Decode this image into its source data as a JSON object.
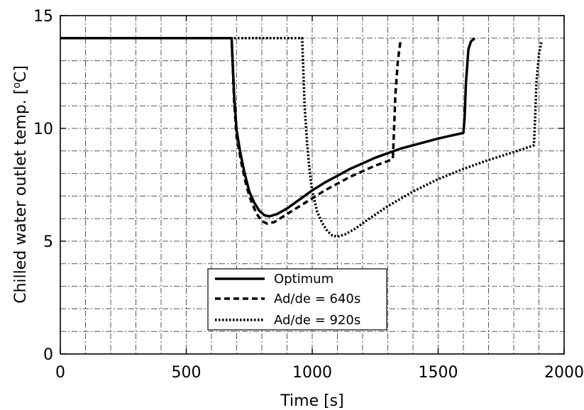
{
  "chart_data": {
    "type": "line",
    "xlabel": "Time [s]",
    "ylabel_main": "Chilled water outlet temp. [",
    "ylabel_sup": "o",
    "ylabel_tail": "C]",
    "xlim": [
      0,
      2000
    ],
    "ylim": [
      0,
      15
    ],
    "xticks": [
      0,
      500,
      1000,
      1500,
      2000
    ],
    "yticks": [
      0,
      5,
      10,
      15
    ],
    "x_minor_step": 100,
    "y_minor_step": 1,
    "grid": true,
    "legend_position": "bottom-center",
    "series": [
      {
        "name": "Optimum",
        "style": "solid",
        "color": "#000000",
        "points": [
          [
            0,
            14
          ],
          [
            680,
            14
          ],
          [
            690,
            11.5
          ],
          [
            700,
            9.9
          ],
          [
            715,
            8.9
          ],
          [
            730,
            8.1
          ],
          [
            750,
            7.2
          ],
          [
            770,
            6.7
          ],
          [
            790,
            6.35
          ],
          [
            810,
            6.15
          ],
          [
            830,
            6.1
          ],
          [
            860,
            6.2
          ],
          [
            900,
            6.45
          ],
          [
            950,
            6.85
          ],
          [
            1000,
            7.25
          ],
          [
            1050,
            7.6
          ],
          [
            1100,
            7.9
          ],
          [
            1150,
            8.2
          ],
          [
            1200,
            8.45
          ],
          [
            1250,
            8.7
          ],
          [
            1300,
            8.9
          ],
          [
            1350,
            9.1
          ],
          [
            1400,
            9.25
          ],
          [
            1450,
            9.4
          ],
          [
            1500,
            9.55
          ],
          [
            1560,
            9.7
          ],
          [
            1600,
            9.8
          ],
          [
            1605,
            10.5
          ],
          [
            1610,
            12
          ],
          [
            1620,
            13.5
          ],
          [
            1630,
            13.85
          ],
          [
            1645,
            14
          ]
        ]
      },
      {
        "name": "Ad/de = 640s",
        "style": "dashed",
        "color": "#000000",
        "points": [
          [
            0,
            14
          ],
          [
            680,
            14
          ],
          [
            690,
            11.2
          ],
          [
            700,
            9.6
          ],
          [
            720,
            8.4
          ],
          [
            740,
            7.4
          ],
          [
            760,
            6.7
          ],
          [
            780,
            6.2
          ],
          [
            800,
            5.9
          ],
          [
            820,
            5.78
          ],
          [
            850,
            5.85
          ],
          [
            900,
            6.2
          ],
          [
            950,
            6.55
          ],
          [
            1000,
            6.9
          ],
          [
            1050,
            7.25
          ],
          [
            1100,
            7.55
          ],
          [
            1150,
            7.85
          ],
          [
            1200,
            8.1
          ],
          [
            1250,
            8.35
          ],
          [
            1300,
            8.55
          ],
          [
            1320,
            8.65
          ],
          [
            1325,
            10
          ],
          [
            1330,
            11.5
          ],
          [
            1340,
            13
          ],
          [
            1350,
            13.85
          ]
        ]
      },
      {
        "name": "Ad/de = 920s",
        "style": "dotted",
        "color": "#000000",
        "points": [
          [
            0,
            14
          ],
          [
            960,
            14
          ],
          [
            970,
            11
          ],
          [
            980,
            9.3
          ],
          [
            990,
            8.1
          ],
          [
            1000,
            7.2
          ],
          [
            1020,
            6.3
          ],
          [
            1040,
            5.8
          ],
          [
            1060,
            5.45
          ],
          [
            1080,
            5.25
          ],
          [
            1100,
            5.2
          ],
          [
            1130,
            5.3
          ],
          [
            1170,
            5.55
          ],
          [
            1220,
            5.95
          ],
          [
            1300,
            6.55
          ],
          [
            1400,
            7.2
          ],
          [
            1500,
            7.75
          ],
          [
            1600,
            8.2
          ],
          [
            1700,
            8.6
          ],
          [
            1800,
            8.95
          ],
          [
            1880,
            9.25
          ],
          [
            1885,
            10.5
          ],
          [
            1890,
            12
          ],
          [
            1900,
            13.3
          ],
          [
            1910,
            13.85
          ]
        ]
      }
    ]
  }
}
